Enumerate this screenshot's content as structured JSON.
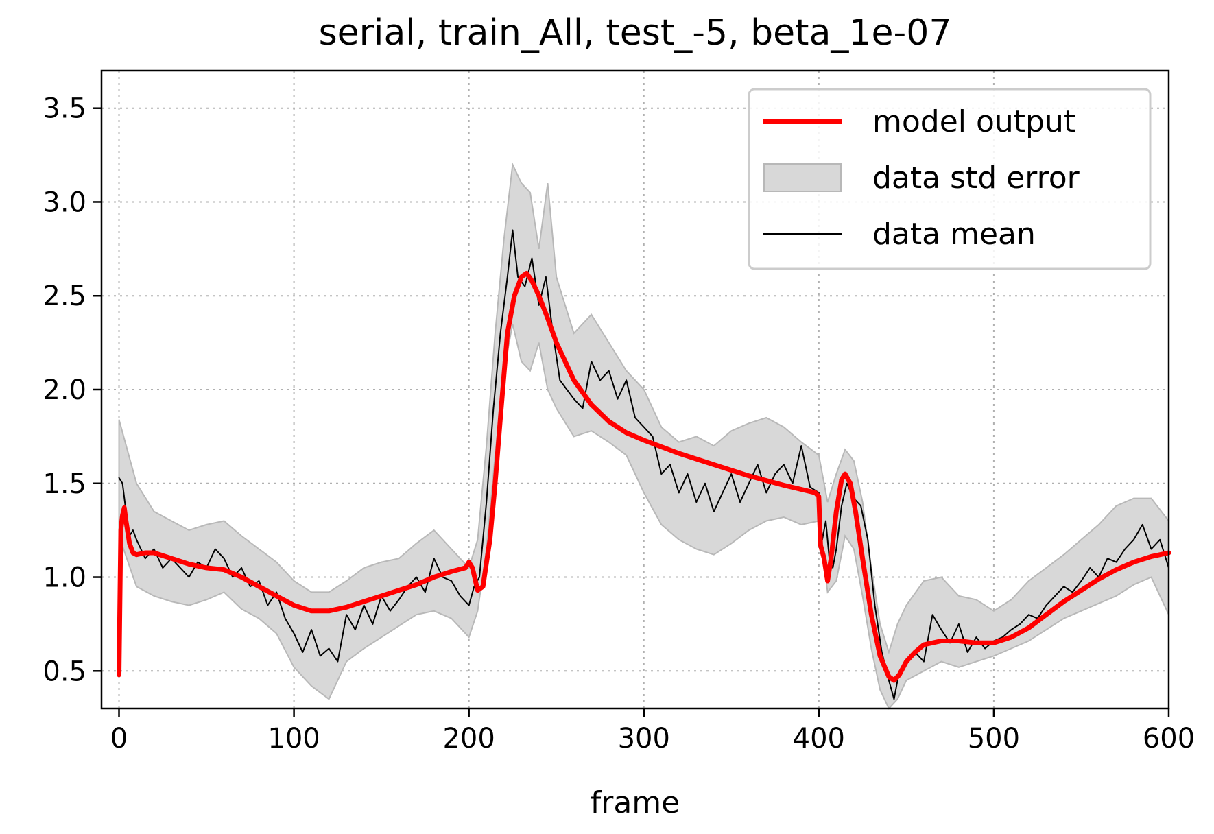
{
  "chart_data": {
    "type": "line",
    "title": "serial, train_All, test_-5, beta_1e-07",
    "xlabel": "frame",
    "ylabel": "",
    "xlim": [
      -10,
      600
    ],
    "ylim": [
      0.3,
      3.7
    ],
    "xticks": [
      0,
      100,
      200,
      300,
      400,
      500,
      600
    ],
    "yticks": [
      0.5,
      1.0,
      1.5,
      2.0,
      2.5,
      3.0,
      3.5
    ],
    "xtick_labels": [
      "0",
      "100",
      "200",
      "300",
      "400",
      "500",
      "600"
    ],
    "ytick_labels": [
      "0.5",
      "1.0",
      "1.5",
      "2.0",
      "2.5",
      "3.0",
      "3.5"
    ],
    "grid": true,
    "legend_position": "top-right",
    "colors": {
      "model": "#ff0000",
      "mean": "#000000",
      "band_fill": "#d8d8d8",
      "band_edge": "#b8b8b8",
      "grid": "#b0b0b0"
    },
    "legend": [
      {
        "label": "model output",
        "kind": "line-thick"
      },
      {
        "label": "data std error",
        "kind": "band"
      },
      {
        "label": "data mean",
        "kind": "line-thin"
      }
    ],
    "series": [
      {
        "name": "model output",
        "role": "model",
        "x": [
          0,
          1,
          2,
          3,
          4,
          6,
          8,
          10,
          15,
          20,
          30,
          40,
          50,
          60,
          70,
          80,
          90,
          100,
          110,
          120,
          130,
          140,
          150,
          160,
          170,
          180,
          190,
          198,
          200,
          202,
          205,
          208,
          212,
          215,
          218,
          222,
          226,
          230,
          233,
          236,
          240,
          245,
          250,
          255,
          260,
          270,
          280,
          290,
          300,
          320,
          340,
          360,
          380,
          398,
          400,
          401,
          403,
          405,
          407,
          410,
          413,
          415,
          418,
          421,
          425,
          430,
          435,
          440,
          443,
          446,
          450,
          455,
          460,
          470,
          480,
          490,
          500,
          510,
          520,
          530,
          540,
          550,
          560,
          570,
          580,
          590,
          600
        ],
        "y": [
          0.48,
          1.25,
          1.33,
          1.37,
          1.3,
          1.18,
          1.13,
          1.12,
          1.13,
          1.13,
          1.1,
          1.07,
          1.05,
          1.04,
          1.0,
          0.95,
          0.9,
          0.85,
          0.82,
          0.82,
          0.84,
          0.87,
          0.9,
          0.93,
          0.96,
          1.0,
          1.03,
          1.05,
          1.08,
          1.05,
          0.93,
          0.95,
          1.2,
          1.5,
          1.85,
          2.3,
          2.5,
          2.6,
          2.62,
          2.58,
          2.5,
          2.38,
          2.25,
          2.15,
          2.05,
          1.92,
          1.83,
          1.77,
          1.73,
          1.66,
          1.6,
          1.54,
          1.49,
          1.45,
          1.43,
          1.17,
          1.1,
          0.98,
          1.1,
          1.35,
          1.52,
          1.55,
          1.5,
          1.35,
          1.1,
          0.8,
          0.58,
          0.47,
          0.45,
          0.48,
          0.55,
          0.6,
          0.64,
          0.66,
          0.66,
          0.65,
          0.65,
          0.68,
          0.73,
          0.8,
          0.87,
          0.93,
          0.99,
          1.04,
          1.08,
          1.11,
          1.13
        ]
      },
      {
        "name": "data mean",
        "role": "mean",
        "x": [
          0,
          2,
          4,
          6,
          8,
          10,
          15,
          20,
          25,
          30,
          35,
          40,
          45,
          50,
          55,
          60,
          65,
          70,
          75,
          80,
          85,
          90,
          95,
          100,
          105,
          110,
          115,
          120,
          125,
          130,
          135,
          140,
          145,
          150,
          155,
          160,
          165,
          170,
          175,
          180,
          185,
          190,
          195,
          200,
          203,
          206,
          210,
          214,
          218,
          222,
          225,
          228,
          232,
          236,
          240,
          244,
          248,
          252,
          256,
          260,
          265,
          270,
          275,
          280,
          285,
          290,
          295,
          300,
          305,
          310,
          315,
          320,
          325,
          330,
          335,
          340,
          345,
          350,
          355,
          360,
          365,
          370,
          375,
          380,
          385,
          390,
          395,
          400,
          402,
          404,
          406,
          408,
          410,
          413,
          416,
          420,
          424,
          428,
          432,
          436,
          440,
          443,
          446,
          450,
          455,
          460,
          465,
          470,
          475,
          480,
          485,
          490,
          495,
          500,
          505,
          510,
          515,
          520,
          525,
          530,
          535,
          540,
          545,
          550,
          555,
          560,
          565,
          570,
          575,
          580,
          585,
          590,
          595,
          600
        ],
        "y": [
          1.53,
          1.5,
          1.35,
          1.22,
          1.25,
          1.2,
          1.1,
          1.15,
          1.05,
          1.1,
          1.05,
          1.0,
          1.08,
          1.05,
          1.15,
          1.1,
          1.0,
          1.05,
          0.95,
          0.98,
          0.85,
          0.92,
          0.78,
          0.7,
          0.6,
          0.72,
          0.58,
          0.62,
          0.55,
          0.8,
          0.72,
          0.85,
          0.75,
          0.9,
          0.82,
          0.88,
          0.95,
          1.0,
          0.92,
          1.1,
          1.0,
          0.98,
          0.9,
          0.85,
          0.95,
          1.0,
          1.4,
          1.9,
          2.3,
          2.6,
          2.85,
          2.6,
          2.55,
          2.7,
          2.45,
          2.6,
          2.3,
          2.05,
          2.0,
          1.95,
          1.9,
          2.15,
          2.05,
          2.1,
          1.95,
          2.05,
          1.85,
          1.8,
          1.75,
          1.55,
          1.6,
          1.45,
          1.55,
          1.4,
          1.5,
          1.35,
          1.45,
          1.55,
          1.4,
          1.5,
          1.6,
          1.45,
          1.55,
          1.6,
          1.5,
          1.7,
          1.48,
          1.45,
          1.2,
          1.3,
          1.1,
          1.05,
          1.15,
          1.38,
          1.5,
          1.42,
          1.38,
          1.2,
          0.85,
          0.6,
          0.45,
          0.35,
          0.5,
          0.55,
          0.6,
          0.55,
          0.8,
          0.72,
          0.65,
          0.75,
          0.6,
          0.68,
          0.62,
          0.66,
          0.68,
          0.72,
          0.75,
          0.8,
          0.78,
          0.85,
          0.9,
          0.95,
          0.92,
          0.98,
          1.05,
          1.0,
          1.1,
          1.08,
          1.15,
          1.2,
          1.28,
          1.15,
          1.2,
          1.05
        ]
      },
      {
        "name": "data std error",
        "role": "band",
        "x": [
          0,
          10,
          20,
          30,
          40,
          50,
          60,
          70,
          80,
          90,
          100,
          110,
          120,
          130,
          140,
          150,
          160,
          170,
          180,
          190,
          200,
          205,
          210,
          215,
          220,
          225,
          230,
          235,
          240,
          245,
          250,
          260,
          270,
          280,
          290,
          300,
          310,
          320,
          330,
          340,
          350,
          360,
          370,
          380,
          390,
          400,
          405,
          410,
          415,
          420,
          425,
          430,
          435,
          440,
          445,
          450,
          460,
          470,
          480,
          490,
          500,
          510,
          520,
          530,
          540,
          550,
          560,
          570,
          580,
          590,
          600
        ],
        "lower": [
          1.22,
          0.95,
          0.9,
          0.87,
          0.85,
          0.88,
          0.92,
          0.83,
          0.78,
          0.7,
          0.52,
          0.42,
          0.35,
          0.55,
          0.62,
          0.68,
          0.74,
          0.8,
          0.82,
          0.78,
          0.68,
          0.82,
          1.15,
          1.65,
          2.1,
          2.35,
          2.15,
          2.1,
          2.25,
          2.0,
          1.9,
          1.75,
          1.78,
          1.72,
          1.65,
          1.45,
          1.28,
          1.2,
          1.15,
          1.12,
          1.18,
          1.25,
          1.3,
          1.32,
          1.28,
          1.3,
          0.92,
          0.98,
          1.22,
          1.15,
          0.9,
          0.62,
          0.4,
          0.28,
          0.35,
          0.45,
          0.5,
          0.55,
          0.52,
          0.55,
          0.58,
          0.62,
          0.66,
          0.72,
          0.78,
          0.82,
          0.86,
          0.9,
          0.96,
          1.0,
          0.8
        ],
        "upper": [
          1.84,
          1.5,
          1.35,
          1.3,
          1.25,
          1.28,
          1.3,
          1.22,
          1.15,
          1.08,
          0.98,
          0.92,
          0.92,
          0.98,
          1.05,
          1.08,
          1.1,
          1.18,
          1.25,
          1.15,
          1.05,
          1.2,
          1.7,
          2.3,
          2.8,
          3.2,
          3.1,
          3.05,
          2.75,
          3.1,
          2.6,
          2.3,
          2.4,
          2.25,
          2.1,
          2.0,
          1.8,
          1.72,
          1.75,
          1.7,
          1.78,
          1.82,
          1.85,
          1.8,
          1.72,
          1.65,
          1.4,
          1.55,
          1.68,
          1.62,
          1.4,
          1.05,
          0.75,
          0.6,
          0.75,
          0.85,
          0.98,
          1.0,
          0.9,
          0.88,
          0.82,
          0.88,
          0.98,
          1.05,
          1.12,
          1.2,
          1.28,
          1.38,
          1.42,
          1.42,
          1.3
        ]
      }
    ]
  }
}
